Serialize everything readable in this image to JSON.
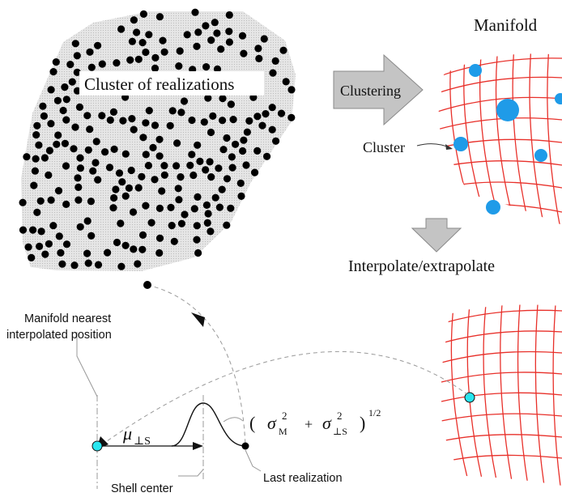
{
  "labels": {
    "cluster_of_realizations": "Cluster of realizations",
    "clustering": "Clustering",
    "manifold": "Manifold",
    "cluster": "Cluster",
    "interpolate_extrapolate": "Interpolate/extrapolate",
    "manifold_nearest_line1": "Manifold nearest",
    "manifold_nearest_line2": "interpolated position",
    "shell_center": "Shell center",
    "last_realization": "Last realization"
  },
  "formula": {
    "mu_symbol": "μ",
    "mu_subscript": "⊥S",
    "open_paren": "(",
    "sigma_symbol": "σ",
    "sigma_m_subscript": "M",
    "sigma_s_subscript": "⊥S",
    "power2": "2",
    "plus": "+",
    "close_paren": ")",
    "half_power": "1/2"
  },
  "colors": {
    "dot": "#000000",
    "cloud": "#dedede",
    "grid": "#e8302a",
    "cluster_node": "#1f9be8",
    "interp_point": "#28e6ef",
    "arrow_fill": "#c4c4c4",
    "arrow_stroke": "#8a8a8a",
    "dash_line": "#999999"
  }
}
